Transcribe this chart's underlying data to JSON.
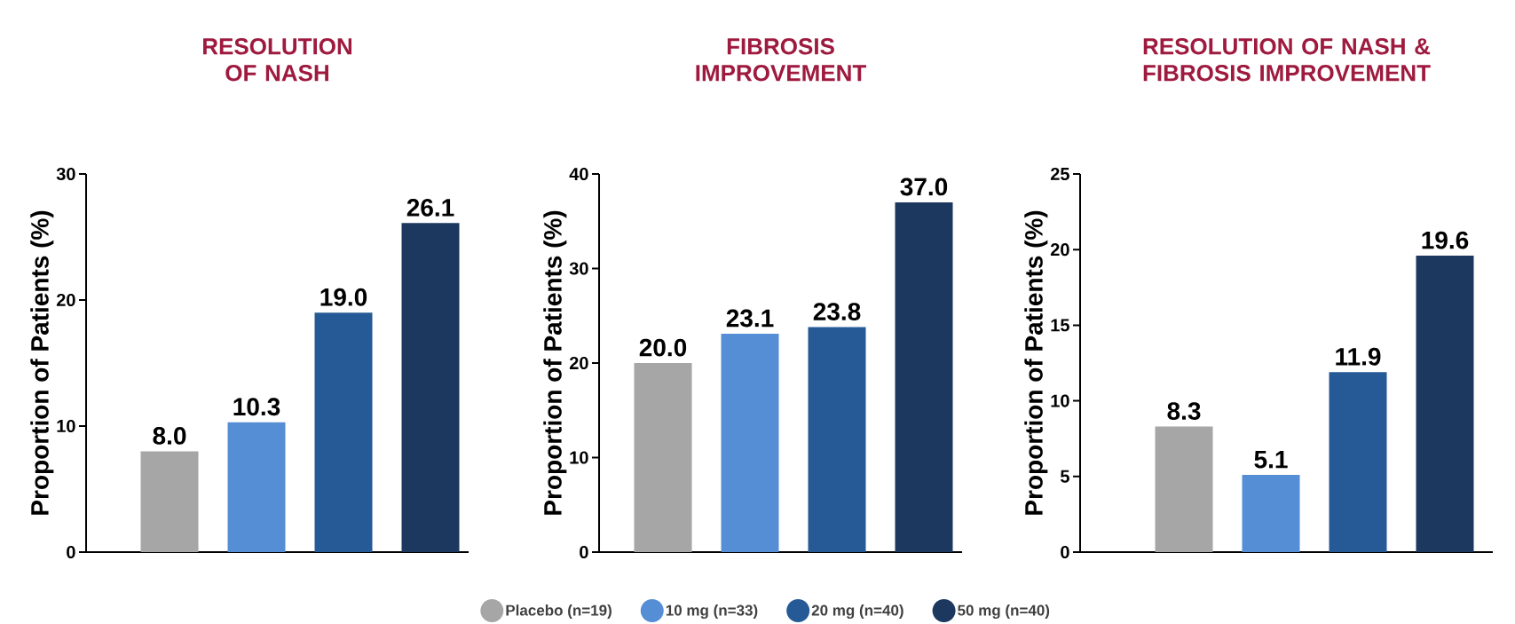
{
  "chart_data": [
    {
      "type": "bar",
      "title": "RESOLUTION OF NASH",
      "ylabel": "Proportion of Patients (%)",
      "categories": [
        null
      ],
      "ylim": [
        0,
        30
      ],
      "yticks": [
        0,
        10,
        20,
        30
      ],
      "series": [
        {
          "color": "#a6a6a6",
          "values": [
            8.0
          ],
          "value_labels": [
            "8.0"
          ]
        },
        {
          "color": "#558ed5",
          "values": [
            10.3
          ],
          "value_labels": [
            "10.3"
          ]
        },
        {
          "color": "#255a96",
          "values": [
            19.0
          ],
          "value_labels": [
            "19.0"
          ]
        },
        {
          "color": "#1c385e",
          "values": [
            26.1
          ],
          "value_labels": [
            "26.1"
          ]
        }
      ]
    },
    {
      "type": "bar",
      "title": "FIBROSIS IMPROVEMENT",
      "ylabel": "Proportion of Patients (%)",
      "categories": [
        null
      ],
      "ylim": [
        0,
        40
      ],
      "yticks": [
        0,
        10,
        20,
        30,
        40
      ],
      "legend": "bottom",
      "series": [
        {
          "name": "Placebo (n=19)",
          "color": "#a6a6a6",
          "values": [
            20.0
          ],
          "value_labels": [
            "20.0"
          ]
        },
        {
          "name": "10 mg (n=33)",
          "color": "#558ed5",
          "values": [
            23.1
          ],
          "value_labels": [
            "23.1"
          ]
        },
        {
          "name": "20 mg (n=40)",
          "color": "#255a96",
          "values": [
            23.8
          ],
          "value_labels": [
            "23.8"
          ]
        },
        {
          "name": "50 mg (n=40)",
          "color": "#1c385e",
          "values": [
            37.0
          ],
          "value_labels": [
            "37.0"
          ]
        }
      ]
    },
    {
      "type": "bar",
      "title": "RESOLUTION OF NASH & FIBROSIS IMPROVEMENT",
      "ylabel": "Proportion of Patients (%)",
      "categories": [
        null
      ],
      "ylim": [
        0,
        25
      ],
      "yticks": [
        0,
        5,
        10,
        15,
        20,
        25
      ],
      "series": [
        {
          "color": "#a6a6a6",
          "values": [
            8.3
          ],
          "value_labels": [
            "8.3"
          ]
        },
        {
          "color": "#558ed5",
          "values": [
            5.1
          ],
          "value_labels": [
            "5.1"
          ]
        },
        {
          "color": "#255a96",
          "values": [
            11.9
          ],
          "value_labels": [
            "11.9"
          ]
        },
        {
          "color": "#1c385e",
          "values": [
            19.6
          ],
          "value_labels": [
            "19.6"
          ]
        }
      ]
    }
  ]
}
